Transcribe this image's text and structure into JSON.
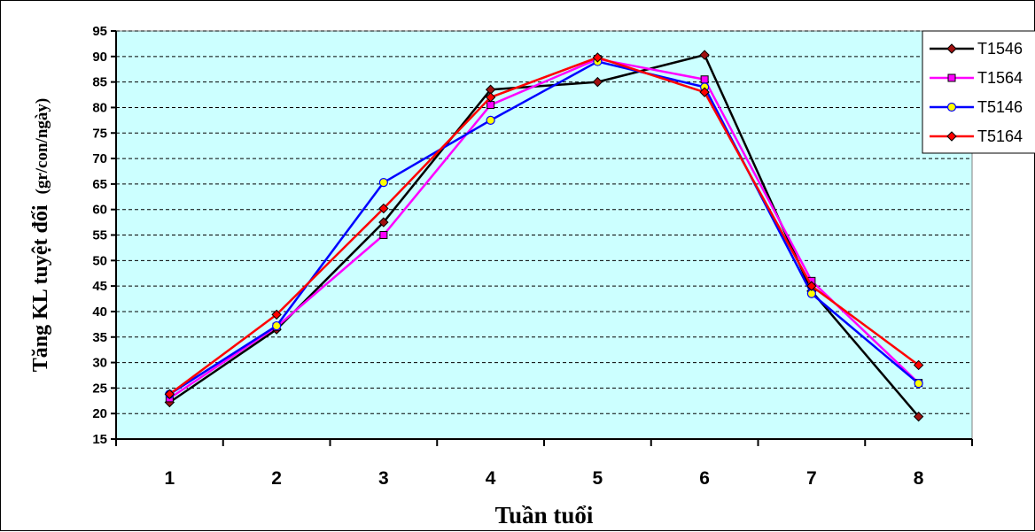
{
  "chart_data": {
    "type": "line",
    "title": "",
    "xlabel": "Tuần tuổi",
    "ylabel": "Tăng KL tuyệt đối",
    "ylabel_unit": "(gr/con/ngày)",
    "ylim": [
      15,
      95
    ],
    "ytick_step": 5,
    "grid": true,
    "legend_position": "top-right",
    "plot_background": "#ccffff",
    "x": [
      1,
      2,
      3,
      4,
      5,
      6,
      7,
      8
    ],
    "series": [
      {
        "name": "T1546",
        "color": "#000000",
        "marker": "diamond",
        "marker_color": "#a01010",
        "values": [
          22.2,
          36.5,
          57.5,
          83.5,
          85.0,
          90.3,
          44.0,
          19.4
        ]
      },
      {
        "name": "T1564",
        "color": "#ff00ff",
        "marker": "square",
        "marker_color": "#ff00ff",
        "values": [
          23.0,
          37.0,
          55.0,
          80.5,
          89.5,
          85.5,
          46.0,
          26.0
        ]
      },
      {
        "name": "T5146",
        "color": "#0000ff",
        "marker": "circle",
        "marker_color": "#ffff00",
        "values": [
          23.8,
          37.2,
          65.3,
          77.5,
          89.0,
          84.0,
          43.5,
          25.9
        ]
      },
      {
        "name": "T5164",
        "color": "#ff0000",
        "marker": "diamond",
        "marker_color": "#ff0000",
        "values": [
          23.8,
          39.4,
          60.2,
          82.0,
          89.8,
          83.0,
          45.0,
          29.5
        ]
      }
    ]
  }
}
